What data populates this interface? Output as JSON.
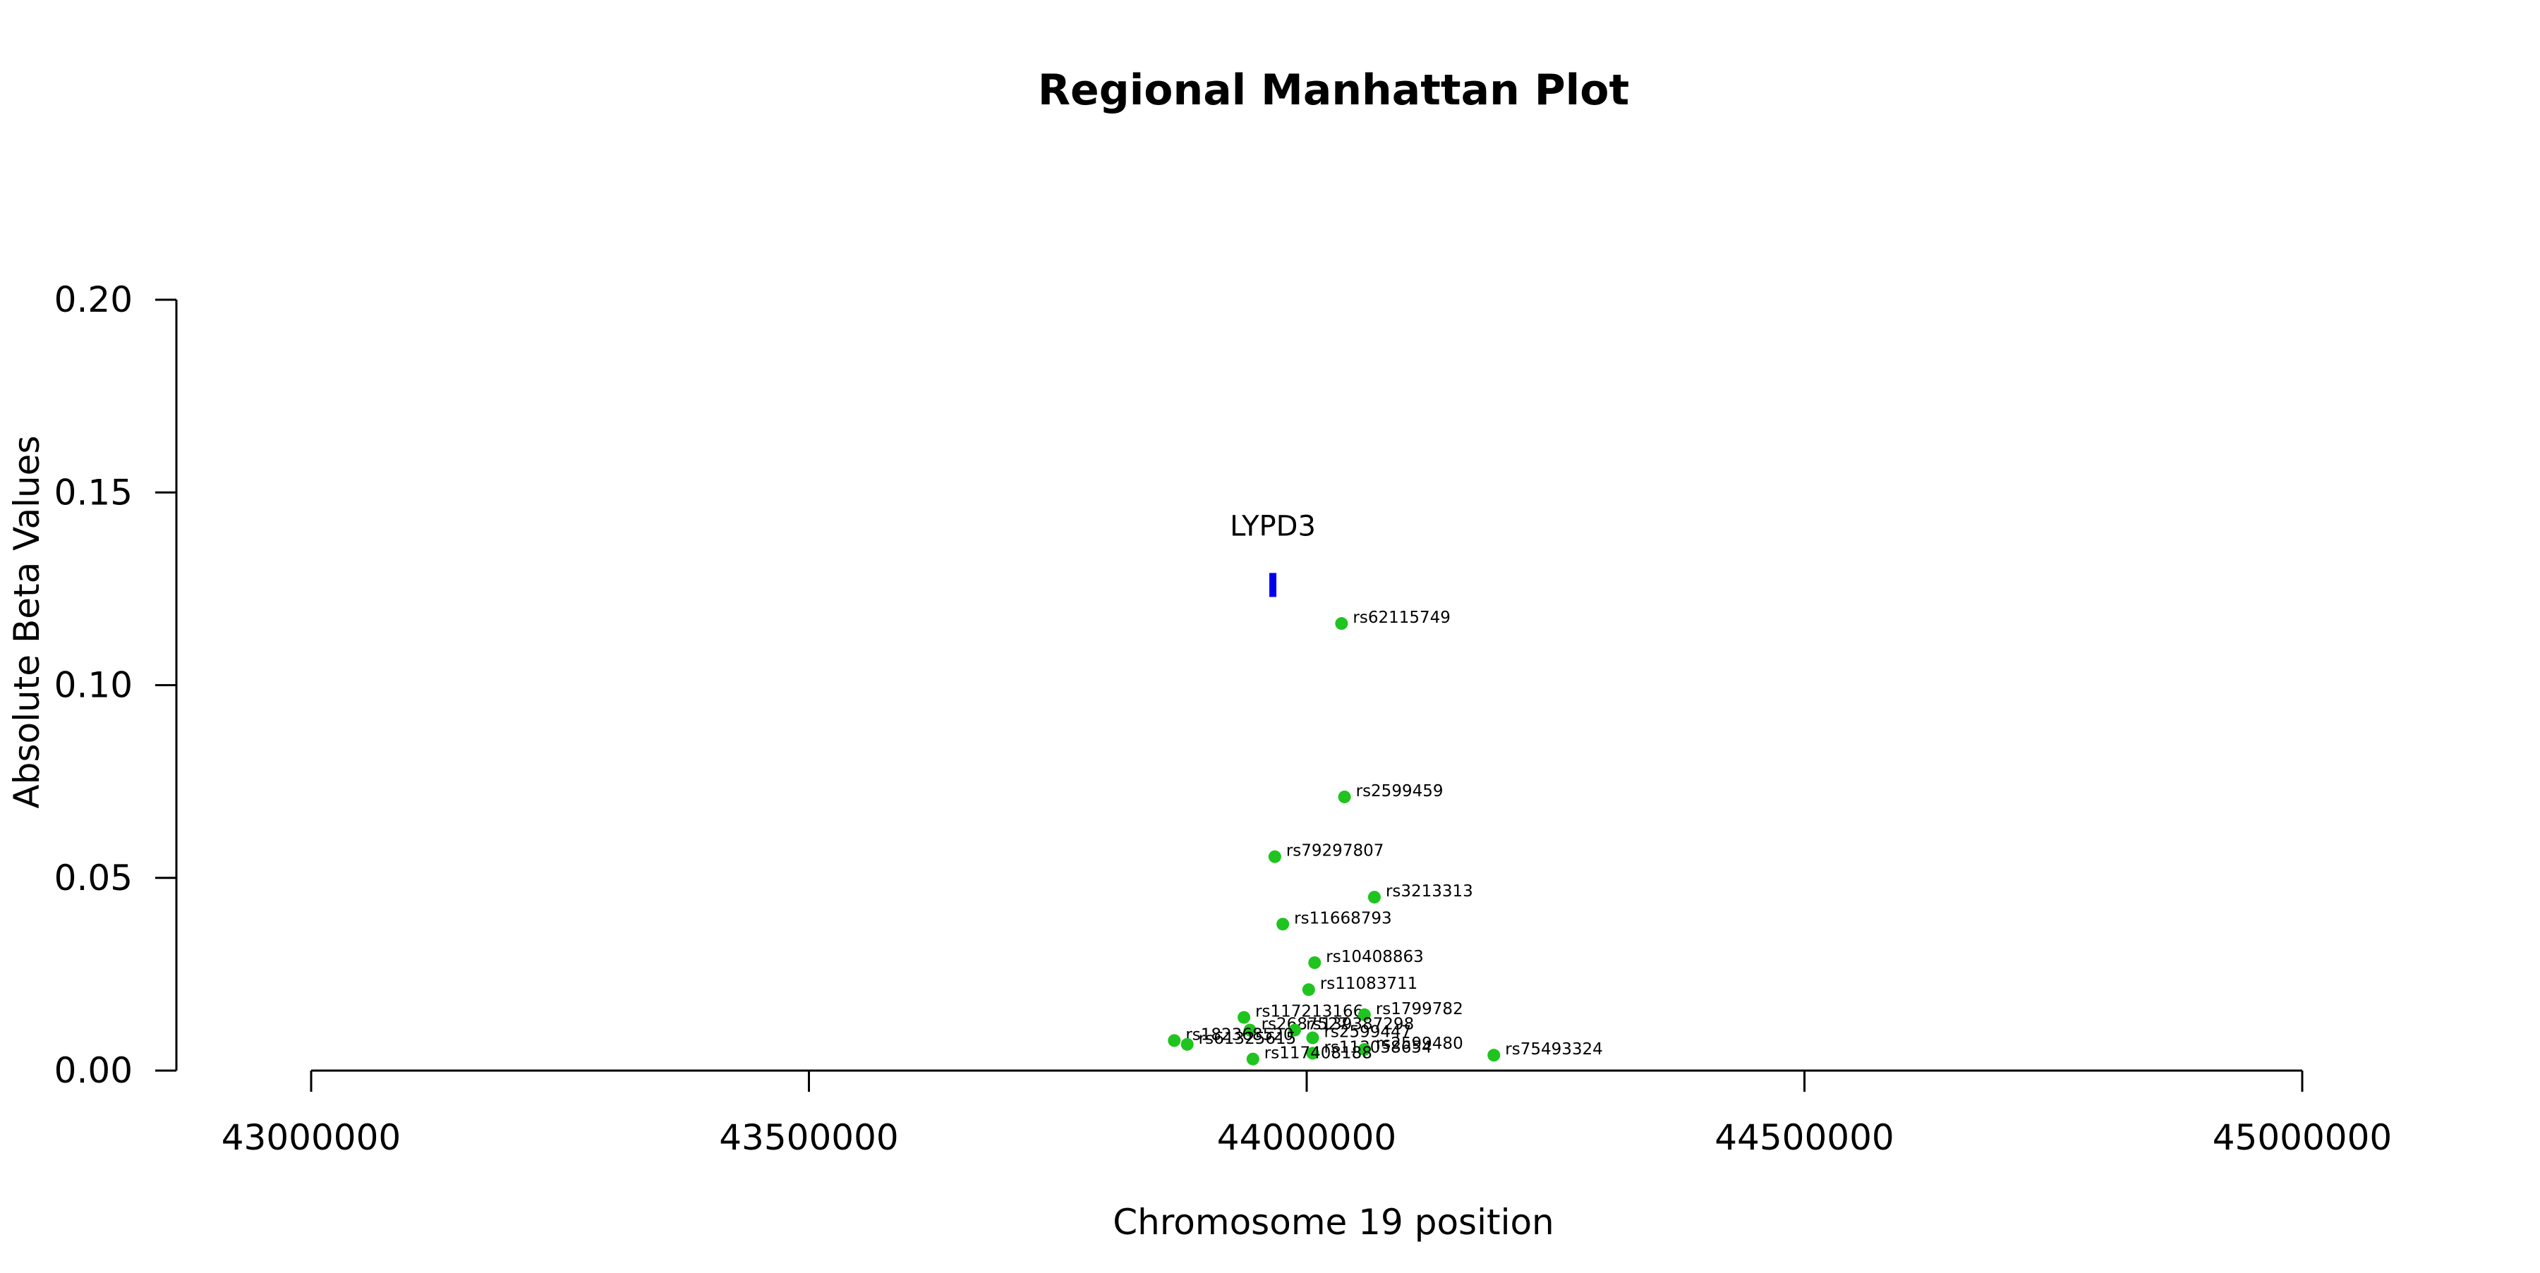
{
  "chart_data": {
    "type": "scatter",
    "title": "Regional Manhattan Plot",
    "xlabel": "Chromosome 19 position",
    "ylabel": "Absolute Beta Values",
    "xlim": [
      43000000,
      45000000
    ],
    "ylim": [
      0.0,
      0.2
    ],
    "x_ticks": [
      43000000,
      43500000,
      44000000,
      44500000,
      45000000
    ],
    "x_tick_labels": [
      "43000000",
      "43500000",
      "44000000",
      "44500000",
      "45000000"
    ],
    "y_ticks": [
      0.0,
      0.05,
      0.1,
      0.15,
      0.2
    ],
    "y_tick_labels": [
      "0.00",
      "0.05",
      "0.10",
      "0.15",
      "0.20"
    ],
    "grid": false,
    "point_color": "#1fc41f",
    "gene_color": "#0000ee",
    "genes": [
      {
        "label": "LYPD3",
        "start": 43963000,
        "end": 43969000,
        "y": 0.126
      }
    ],
    "points": [
      {
        "label": "rs62115749",
        "x": 44035000,
        "y": 0.116
      },
      {
        "label": "rs2599459",
        "x": 44038000,
        "y": 0.071
      },
      {
        "label": "rs79297807",
        "x": 43968000,
        "y": 0.0555
      },
      {
        "label": "rs3213313",
        "x": 44068000,
        "y": 0.045
      },
      {
        "label": "rs11668793",
        "x": 43976000,
        "y": 0.038
      },
      {
        "label": "rs10408863",
        "x": 44008000,
        "y": 0.028
      },
      {
        "label": "rs11083711",
        "x": 44002000,
        "y": 0.021
      },
      {
        "label": "rs117213166",
        "x": 43937000,
        "y": 0.0138
      },
      {
        "label": "rs1799782",
        "x": 44058000,
        "y": 0.0145
      },
      {
        "label": "rs2687527",
        "x": 43943000,
        "y": 0.0105
      },
      {
        "label": "rs139387298",
        "x": 43988000,
        "y": 0.0105
      },
      {
        "label": "rs2599447",
        "x": 44006000,
        "y": 0.0085
      },
      {
        "label": "rs182368520",
        "x": 43867000,
        "y": 0.0078
      },
      {
        "label": "rs61325615",
        "x": 43880000,
        "y": 0.0068
      },
      {
        "label": "rs113058654",
        "x": 44006000,
        "y": 0.0045
      },
      {
        "label": "rs2599480",
        "x": 44058000,
        "y": 0.0055
      },
      {
        "label": "rs117408188",
        "x": 43946000,
        "y": 0.003
      },
      {
        "label": "rs75493324",
        "x": 44188000,
        "y": 0.004
      }
    ]
  }
}
